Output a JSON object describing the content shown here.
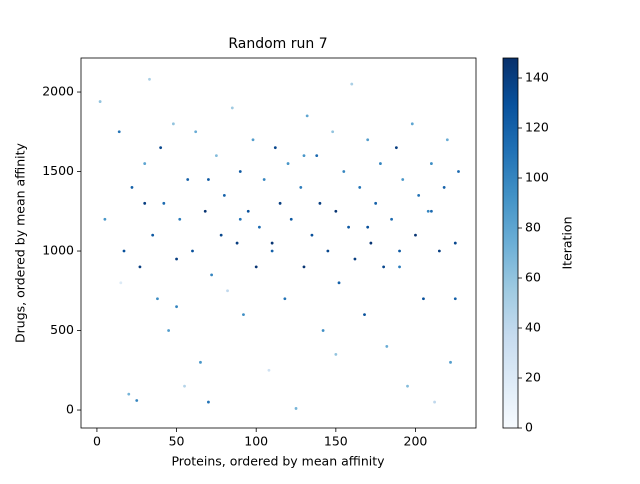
{
  "chart_data": {
    "type": "scatter",
    "title": "Random run 7",
    "xlabel": "Proteins, ordered by mean affinity",
    "ylabel": "Drugs, ordered by mean affinity",
    "xlim": [
      -10,
      238
    ],
    "xticks": [
      0,
      50,
      100,
      150,
      200
    ],
    "ylim": [
      -113,
      2214
    ],
    "yticks": [
      0,
      500,
      1000,
      1500,
      2000
    ],
    "colorbar_label": "Iteration",
    "clim": [
      0,
      148
    ],
    "cticks": [
      0,
      20,
      40,
      60,
      80,
      100,
      120,
      140
    ],
    "colormap": [
      "#f7fbff",
      "#deebf7",
      "#c6dbef",
      "#9ecae1",
      "#6baed6",
      "#4292c6",
      "#2171b5",
      "#08519c",
      "#08306b"
    ],
    "x": [
      2,
      5,
      14,
      17,
      20,
      22,
      25,
      27,
      30,
      33,
      35,
      38,
      40,
      42,
      45,
      48,
      50,
      52,
      55,
      57,
      60,
      62,
      65,
      68,
      70,
      72,
      75,
      78,
      80,
      82,
      85,
      88,
      90,
      92,
      95,
      98,
      100,
      102,
      105,
      108,
      110,
      112,
      115,
      118,
      120,
      122,
      125,
      128,
      130,
      132,
      135,
      138,
      140,
      142,
      145,
      148,
      150,
      152,
      155,
      158,
      160,
      162,
      165,
      168,
      170,
      172,
      175,
      178,
      180,
      182,
      185,
      188,
      190,
      192,
      195,
      198,
      200,
      202,
      205,
      208,
      210,
      212,
      215,
      218,
      220,
      222,
      225,
      227,
      15,
      30,
      50,
      70,
      90,
      110,
      130,
      150,
      170,
      190,
      210,
      225
    ],
    "y": [
      1940,
      1200,
      1750,
      1000,
      100,
      1400,
      60,
      900,
      1550,
      2080,
      1100,
      700,
      1650,
      1300,
      500,
      1800,
      950,
      1200,
      150,
      1450,
      1000,
      1750,
      300,
      1250,
      50,
      850,
      1600,
      1100,
      1350,
      750,
      1900,
      1050,
      1500,
      600,
      1250,
      1700,
      900,
      1150,
      1450,
      250,
      1000,
      1650,
      1300,
      700,
      1550,
      1200,
      10,
      1400,
      900,
      1850,
      1100,
      1600,
      1300,
      500,
      1000,
      1750,
      1250,
      800,
      1500,
      1150,
      2050,
      950,
      1400,
      600,
      1700,
      1050,
      1300,
      1550,
      900,
      400,
      1200,
      1650,
      1000,
      1450,
      150,
      1800,
      1100,
      1350,
      700,
      1250,
      1550,
      50,
      1000,
      1400,
      1700,
      300,
      1050,
      1500,
      800,
      1300,
      650,
      1450,
      1200,
      1050,
      1600,
      350,
      1150,
      900,
      1250,
      700
    ],
    "c": [
      60,
      90,
      110,
      130,
      70,
      120,
      100,
      140,
      80,
      50,
      125,
      95,
      135,
      115,
      85,
      60,
      140,
      105,
      45,
      120,
      130,
      75,
      90,
      145,
      110,
      100,
      65,
      135,
      120,
      40,
      55,
      140,
      125,
      95,
      130,
      85,
      145,
      115,
      100,
      30,
      120,
      135,
      140,
      110,
      90,
      125,
      70,
      105,
      145,
      80,
      130,
      115,
      140,
      95,
      135,
      60,
      145,
      120,
      100,
      125,
      50,
      140,
      110,
      130,
      85,
      145,
      120,
      100,
      135,
      75,
      115,
      140,
      125,
      90,
      65,
      80,
      145,
      110,
      130,
      100,
      95,
      40,
      140,
      120,
      75,
      85,
      135,
      115,
      20,
      140,
      100,
      125,
      110,
      145,
      90,
      60,
      130,
      105,
      115,
      120
    ]
  }
}
